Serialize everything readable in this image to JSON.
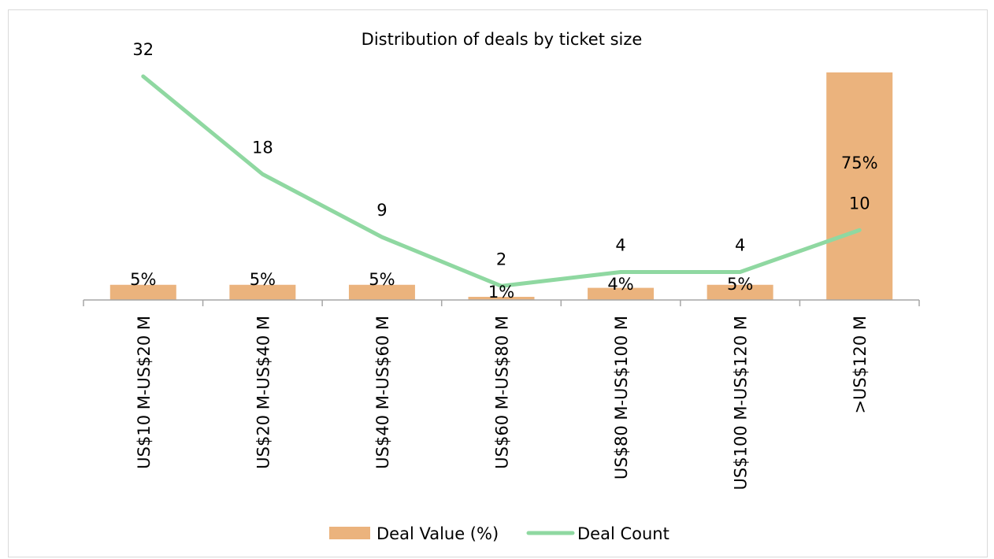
{
  "chart_data": {
    "type": "bar+line",
    "title": "Distribution of deals by ticket size",
    "categories": [
      "US$10 M-US$20 M",
      "US$20 M-US$40 M",
      "US$40 M-US$60 M",
      "US$60 M-US$80 M",
      "US$80 M-US$100 M",
      "US$100 M-US$120 M",
      ">US$120 M"
    ],
    "series": [
      {
        "name": "Deal Value (%)",
        "type": "bar",
        "values": [
          5,
          5,
          5,
          1,
          4,
          5,
          75
        ],
        "labels": [
          "5%",
          "5%",
          "5%",
          "1%",
          "4%",
          "5%",
          "75%"
        ],
        "color": "#ebb37d"
      },
      {
        "name": "Deal Count",
        "type": "line",
        "values": [
          32,
          18,
          9,
          2,
          4,
          4,
          10
        ],
        "labels": [
          "32",
          "18",
          "9",
          "2",
          "4",
          "4",
          "10"
        ],
        "color": "#8fd8a1"
      }
    ],
    "axis_color": "#a6a6a6",
    "grid": false,
    "legend_position": "bottom"
  }
}
